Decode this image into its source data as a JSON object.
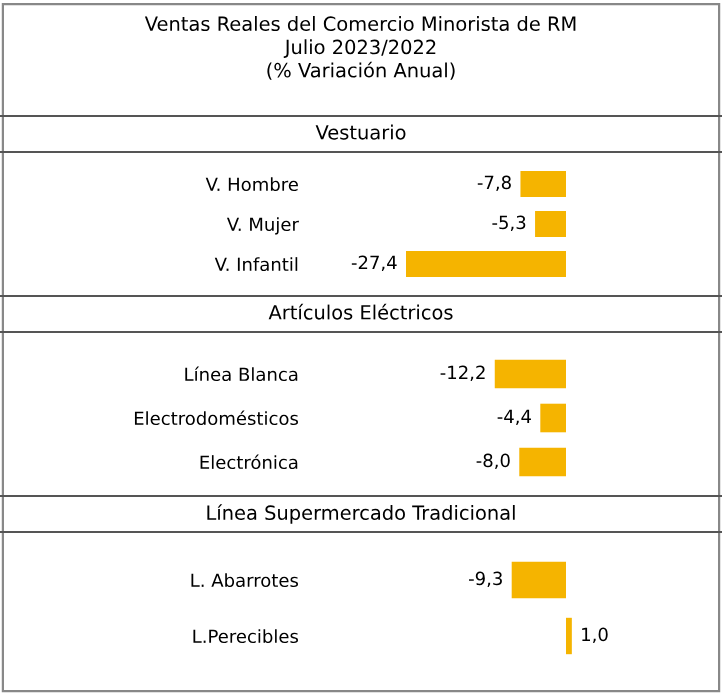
{
  "chart_data": [
    {
      "type": "bar",
      "orientation": "horizontal",
      "title": "Ventas Reales del Comercio Minorista de RM\nJulio 2023/2022\n(% Variación Anual)",
      "subtitle": "Vestuario",
      "categories": [
        "V. Hombre",
        "V. Mujer",
        "V. Infantil"
      ],
      "values": [
        -7.8,
        -5.3,
        -27.4
      ],
      "value_labels": [
        "-7,8",
        "-5,3",
        "-27,4"
      ],
      "color": "#f5b400"
    },
    {
      "type": "bar",
      "orientation": "horizontal",
      "subtitle": "Artículos Eléctricos",
      "categories": [
        "Línea Blanca",
        "Electrodomésticos",
        "Electrónica"
      ],
      "values": [
        -12.2,
        -4.4,
        -8.0
      ],
      "value_labels": [
        "-12,2",
        "-4,4",
        "-8,0"
      ],
      "color": "#f5b400"
    },
    {
      "type": "bar",
      "orientation": "horizontal",
      "subtitle": "Línea Supermercado Tradicional",
      "categories": [
        "L. Abarrotes",
        "L.Perecibles"
      ],
      "values": [
        -9.3,
        1.0
      ],
      "value_labels": [
        "-9,3",
        "1,0"
      ],
      "color": "#f5b400"
    }
  ]
}
